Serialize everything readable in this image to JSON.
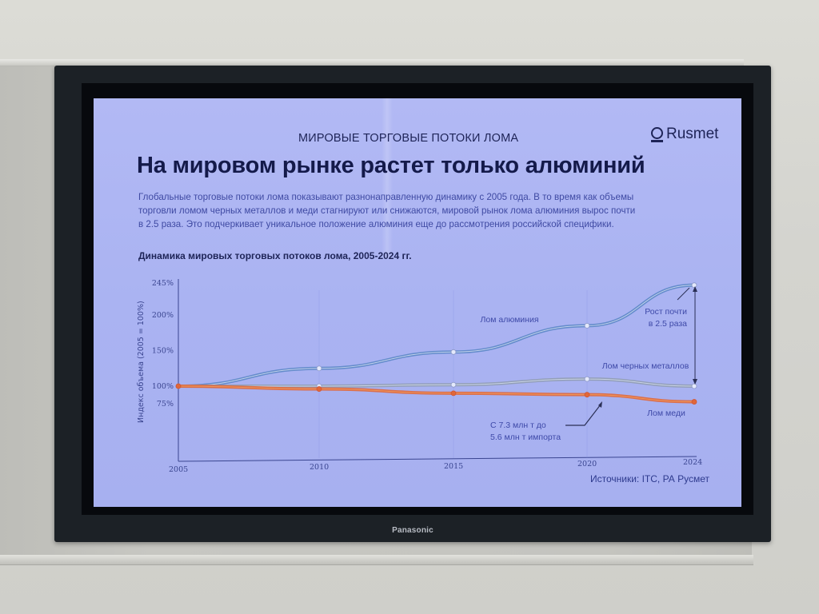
{
  "slide": {
    "kicker": "МИРОВЫЕ ТОРГОВЫЕ ПОТОКИ ЛОМА",
    "logo_text": "Rusmet",
    "title": "На мировом рынке растет только алюминий",
    "lead_lines": [
      "Глобальные торговые потоки лома показывают разнонаправленную динамику с 2005 года. В то время как объемы",
      "торговли ломом черных металлов и меди стагнируют или снижаются, мировой рынок лома алюминия вырос почти",
      "в 2.5 раза. Это подчеркивает уникальное положение алюминия еще до рассмотрения российской специфики."
    ],
    "chart_title": "Динамика мировых торговых потоков лома, 2005-2024 гг.",
    "source": "Источники: ITC, РА Русмет"
  },
  "tv": {
    "brand": "Panasonic"
  },
  "colors": {
    "screen_bg": "#aab3f2",
    "text_dark": "#1e2457",
    "aluminium": "#5b86c7",
    "ferrous": "#8f9bb0",
    "copper": "#e0673a",
    "bezel": "#1c2126"
  },
  "chart_data": {
    "type": "line",
    "title": "Динамика мировых торговых потоков лома, 2005-2024 гг.",
    "xlabel": "",
    "ylabel": "Индекс объема (2005 = 100%)",
    "x": [
      2005,
      2010,
      2015,
      2020,
      2024
    ],
    "x_tick_labels": [
      "2005",
      "2010",
      "2015",
      "2020",
      "2024"
    ],
    "y_tick_labels": [
      "245%",
      "200%",
      "150%",
      "100%",
      "75%"
    ],
    "ylim": [
      60,
      245
    ],
    "grid": false,
    "series": [
      {
        "name": "Лом алюминия",
        "values": [
          100,
          125,
          148,
          185,
          242
        ],
        "color": "#5b86c7"
      },
      {
        "name": "Лом черных металлов",
        "values": [
          100,
          100,
          102,
          110,
          100
        ],
        "color": "#8f9bb0"
      },
      {
        "name": "Лом меди",
        "values": [
          100,
          96,
          90,
          88,
          78
        ],
        "color": "#e0673a"
      }
    ],
    "annotations": [
      {
        "text_lines": [
          "Рост почти",
          "в 2.5 раза"
        ],
        "target": "Лом алюминия 2024"
      },
      {
        "text_lines": [
          "С 7.3 млн т до",
          "5.6 млн т импорта"
        ],
        "target": "Лом меди 2020"
      }
    ],
    "legend": "inline labels"
  }
}
